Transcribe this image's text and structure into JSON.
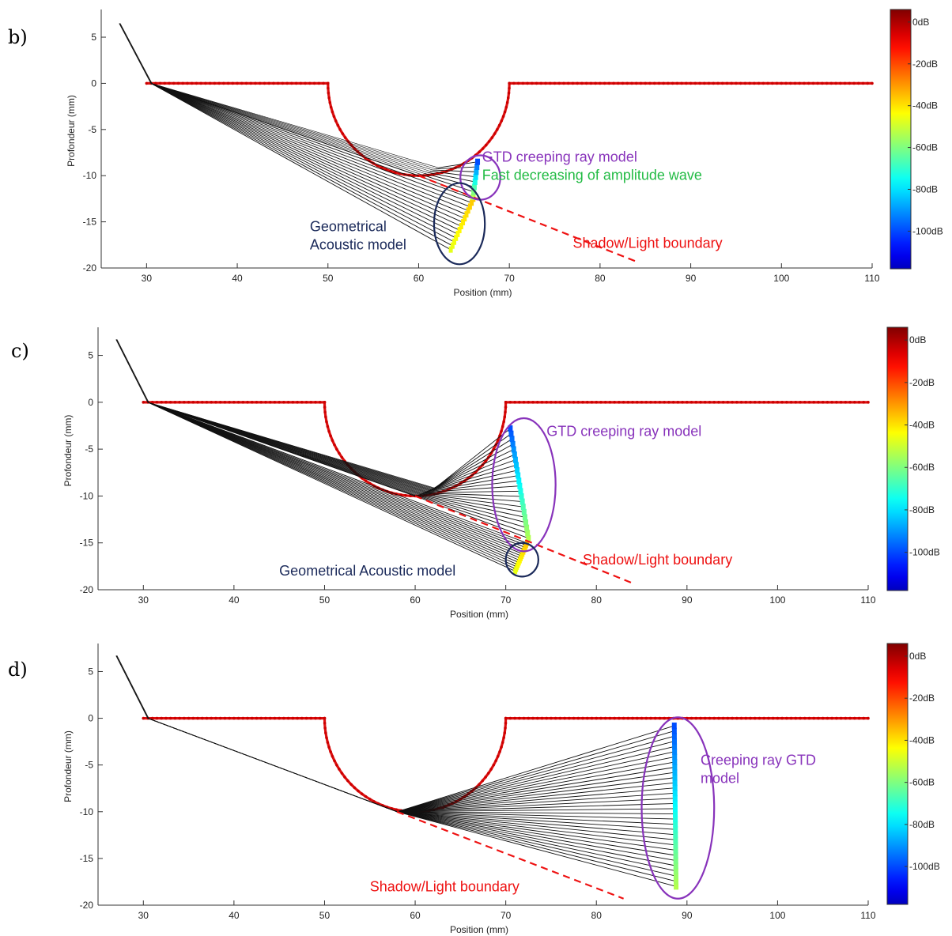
{
  "colors": {
    "surface": "#dd1111",
    "ray": "#111111",
    "boundary": "#ee1111",
    "gtd_circle": "#8833bb",
    "geo_circle": "#1b2a5a",
    "green_text": "#22bb44"
  },
  "colorbar": {
    "labels": [
      "0dB",
      "-20dB",
      "-40dB",
      "-60dB",
      "-80dB",
      "-100dB"
    ],
    "values": [
      0,
      -20,
      -40,
      -60,
      -80,
      -100
    ],
    "range": [
      -118,
      6
    ]
  },
  "chart_data": [
    {
      "panel_label": "b)",
      "type": "line",
      "xlabel": "Position (mm)",
      "ylabel": "Profondeur (mm)",
      "xlim": [
        25,
        110
      ],
      "ylim": [
        -20,
        8
      ],
      "xticks": [
        30,
        40,
        50,
        60,
        70,
        80,
        90,
        100,
        110
      ],
      "yticks": [
        5,
        0,
        -5,
        -10,
        -15,
        -20
      ],
      "source": [
        27,
        6.5
      ],
      "entry_point": [
        30.5,
        0
      ],
      "tangent_point": [
        60,
        -10
      ],
      "boundary_end": [
        84,
        -19.3
      ],
      "geo_rays_end": {
        "from": [
          63.5,
          -18
        ],
        "to": [
          66,
          -12.5
        ]
      },
      "gtd_rays_end": {
        "from": [
          66,
          -12.3
        ],
        "to": [
          66.5,
          -8.5
        ]
      },
      "annotations": [
        {
          "id": "gtd",
          "lines": [
            "GTD creeping ray model",
            "Fast decreasing of amplitude wave"
          ],
          "colors": [
            "#8833bb",
            "#22bb44"
          ],
          "at": [
            67,
            -8.5
          ]
        },
        {
          "id": "geo",
          "lines": [
            "Geometrical",
            "Acoustic model"
          ],
          "colors": [
            "#1b2a5a",
            "#1b2a5a"
          ],
          "at": [
            48,
            -16
          ]
        },
        {
          "id": "boundary",
          "lines": [
            "Shadow/Light boundary"
          ],
          "colors": [
            "#ee1111"
          ],
          "at": [
            77,
            -17.8
          ]
        }
      ],
      "ellipses": [
        {
          "id": "gtd-circle",
          "cx": 66.8,
          "cy": -10.2,
          "rx": 2.2,
          "ry": 2.4,
          "color": "#8833bb"
        },
        {
          "id": "geo-circle",
          "cx": 64.5,
          "cy": -15.2,
          "rx": 2.8,
          "ry": 4.4,
          "color": "#1b2a5a"
        }
      ]
    },
    {
      "panel_label": "c)",
      "type": "line",
      "xlabel": "Position (mm)",
      "ylabel": "Profondeur (mm)",
      "xlim": [
        25,
        110
      ],
      "ylim": [
        -20,
        8
      ],
      "xticks": [
        30,
        40,
        50,
        60,
        70,
        80,
        90,
        100,
        110
      ],
      "yticks": [
        5,
        0,
        -5,
        -10,
        -15,
        -20
      ],
      "source": [
        27,
        6.7
      ],
      "entry_point": [
        30.5,
        0
      ],
      "tangent_point": [
        60,
        -10
      ],
      "boundary_end": [
        84,
        -19.3
      ],
      "geo_rays_end": {
        "from": [
          71,
          -18
        ],
        "to": [
          72.3,
          -15
        ]
      },
      "gtd_rays_end": {
        "from": [
          72.5,
          -14.5
        ],
        "to": [
          70.5,
          -2.8
        ]
      },
      "annotations": [
        {
          "id": "gtd",
          "lines": [
            "GTD creeping ray model"
          ],
          "colors": [
            "#8833bb"
          ],
          "at": [
            74.5,
            -3.6
          ]
        },
        {
          "id": "geo",
          "lines": [
            "Geometrical Acoustic model"
          ],
          "colors": [
            "#1b2a5a"
          ],
          "at": [
            45,
            -18.5
          ]
        },
        {
          "id": "boundary",
          "lines": [
            "Shadow/Light boundary"
          ],
          "colors": [
            "#ee1111"
          ],
          "at": [
            78.5,
            -17.3
          ]
        }
      ],
      "ellipses": [
        {
          "id": "gtd-circle",
          "cx": 72,
          "cy": -8.8,
          "rx": 3.5,
          "ry": 7.1,
          "color": "#8833bb"
        },
        {
          "id": "geo-circle",
          "cx": 71.8,
          "cy": -16.8,
          "rx": 1.8,
          "ry": 1.8,
          "color": "#1b2a5a"
        }
      ]
    },
    {
      "panel_label": "d)",
      "type": "line",
      "xlabel": "Position (mm)",
      "ylabel": "Profondeur (mm)",
      "xlim": [
        25,
        110
      ],
      "ylim": [
        -20,
        8
      ],
      "xticks": [
        30,
        40,
        50,
        60,
        70,
        80,
        90,
        100,
        110
      ],
      "yticks": [
        5,
        0,
        -5,
        -10,
        -15,
        -20
      ],
      "source": [
        27,
        6.7
      ],
      "entry_point": [
        30.5,
        0
      ],
      "tangent_point": [
        58,
        -10
      ],
      "boundary_end": [
        83,
        -19.3
      ],
      "geo_rays_end": null,
      "gtd_rays_end": {
        "from": [
          88.8,
          -18
        ],
        "to": [
          88.6,
          -0.8
        ]
      },
      "annotations": [
        {
          "id": "gtd",
          "lines": [
            "Creeping ray GTD",
            "model"
          ],
          "colors": [
            "#8833bb",
            "#8833bb"
          ],
          "at": [
            91.5,
            -5
          ]
        },
        {
          "id": "boundary",
          "lines": [
            "Shadow/Light boundary"
          ],
          "colors": [
            "#ee1111"
          ],
          "at": [
            55,
            -18.5
          ]
        }
      ],
      "ellipses": [
        {
          "id": "gtd-circle",
          "cx": 89,
          "cy": -9.6,
          "rx": 4,
          "ry": 9.7,
          "color": "#8833bb"
        }
      ]
    }
  ]
}
